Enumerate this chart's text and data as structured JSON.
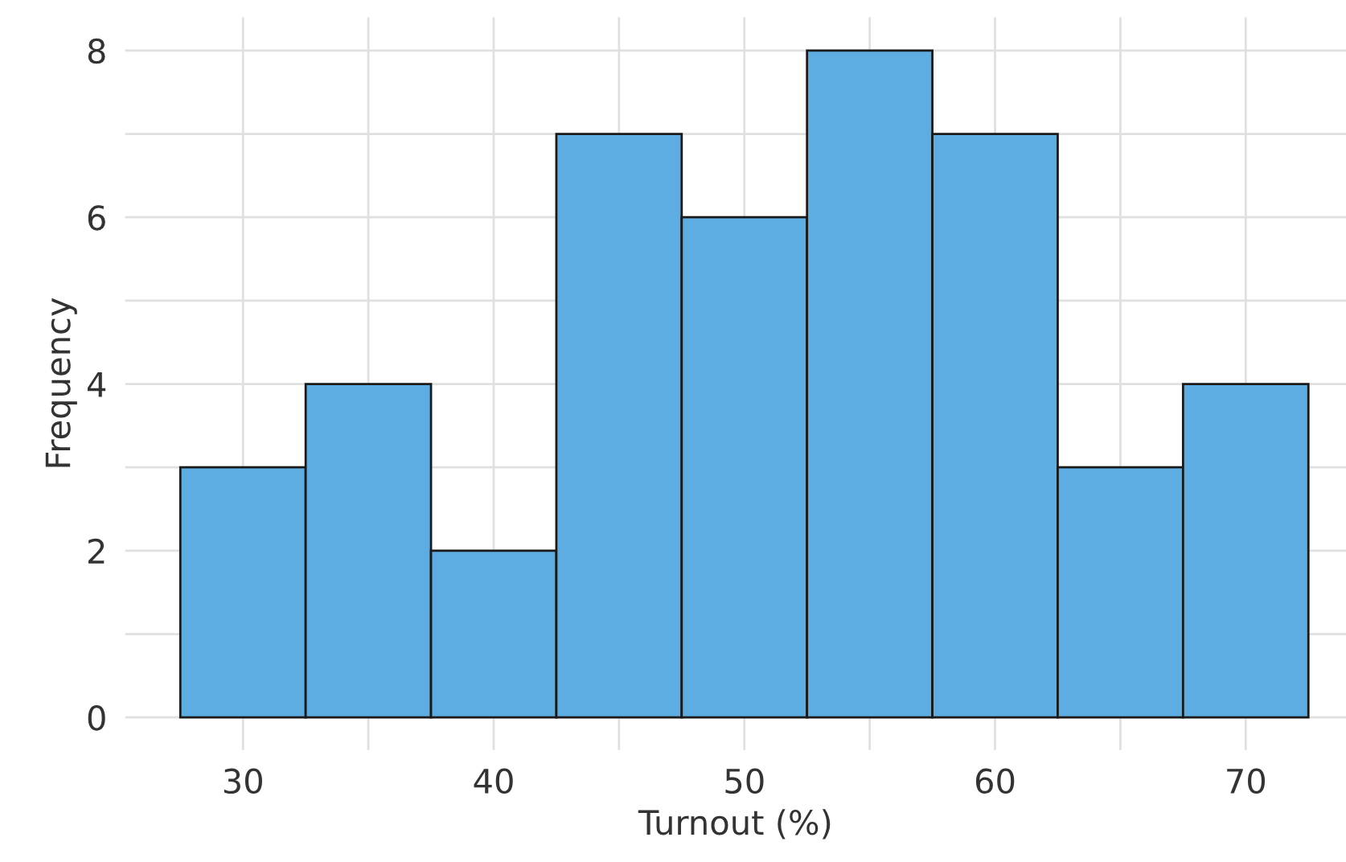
{
  "chart_data": {
    "type": "histogram",
    "xlabel": "Turnout (%)",
    "ylabel": "Frequency",
    "bins": [
      27.5,
      32.5,
      37.5,
      42.5,
      47.5,
      52.5,
      57.5,
      62.5,
      67.5,
      72.5
    ],
    "values": [
      3,
      4,
      2,
      7,
      6,
      8,
      7,
      3,
      4
    ],
    "color": "#5dade2",
    "xlim": [
      25.3,
      74
    ],
    "ylim": [
      -0.39,
      8.4
    ],
    "xticks": [
      30,
      {
        "value": 35,
        "label": null
      },
      40,
      {
        "value": 45,
        "label": null
      },
      50,
      {
        "value": 55,
        "label": null
      },
      60,
      {
        "value": 65,
        "label": null
      },
      70
    ],
    "yticks": [
      0,
      {
        "value": 1,
        "label": null
      },
      2,
      {
        "value": 3,
        "label": null
      },
      4,
      {
        "value": 5,
        "label": null
      },
      6,
      {
        "value": 7,
        "label": null
      },
      8
    ],
    "grid": true
  }
}
